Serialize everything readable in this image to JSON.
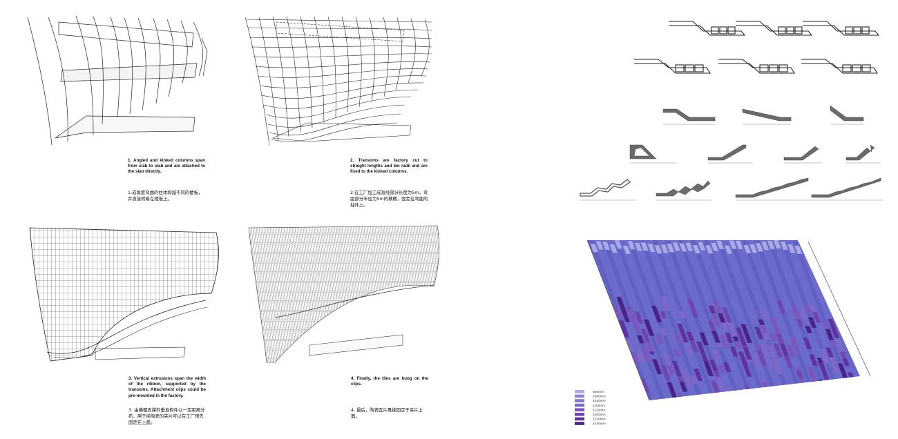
{
  "steps": [
    {
      "en": "1. Angled and kinked columns span from slab to slab and are attached to the slab directly.",
      "cn": "1.成角度弯曲的柱体跨越不同的楼板，并直接附着在楼板上。"
    },
    {
      "en": "2. Transoms are factory cut to straight lengths and 5m radii and are fixed to the kinked columns.",
      "cn": "2.在工厂加工成直线部分长度为5m，弯曲部分半径为5m的横楣，固定在弯曲的柱体上。"
    },
    {
      "en": "3. Vertical extrusions span the width of the ribbon, supported by the transoms. Attachment clips could be pre-mounted in the factory.",
      "cn": "3. 由横楣支撑的垂直构件以一定距离分布，用于挂陶瓷的夹片可以在工厂预先固定在上面。"
    },
    {
      "en": "4. Finally, the tiles are hung on the clips.",
      "cn": "4. 最后，陶瓷瓦片悬挂固定于夹片上面。"
    }
  ],
  "legend": {
    "items": [
      {
        "label": "500mm",
        "color": "#a9a9e4"
      },
      {
        "label": "1000mm",
        "color": "#8f87d6"
      },
      {
        "label": "1020mm",
        "color": "#8578cf"
      },
      {
        "label": "1100mm",
        "color": "#8068c7"
      },
      {
        "label": "1120mm",
        "color": "#7a56bd"
      },
      {
        "label": "1200mm",
        "color": "#6f45b0"
      },
      {
        "label": "1220mm",
        "color": "#5f329f"
      },
      {
        "label": "1240mm",
        "color": "#4a2389"
      }
    ]
  },
  "colors": {
    "line": "#222222",
    "profile_fill": "#6b6b6b",
    "tile_base": "#6a6ad0"
  }
}
